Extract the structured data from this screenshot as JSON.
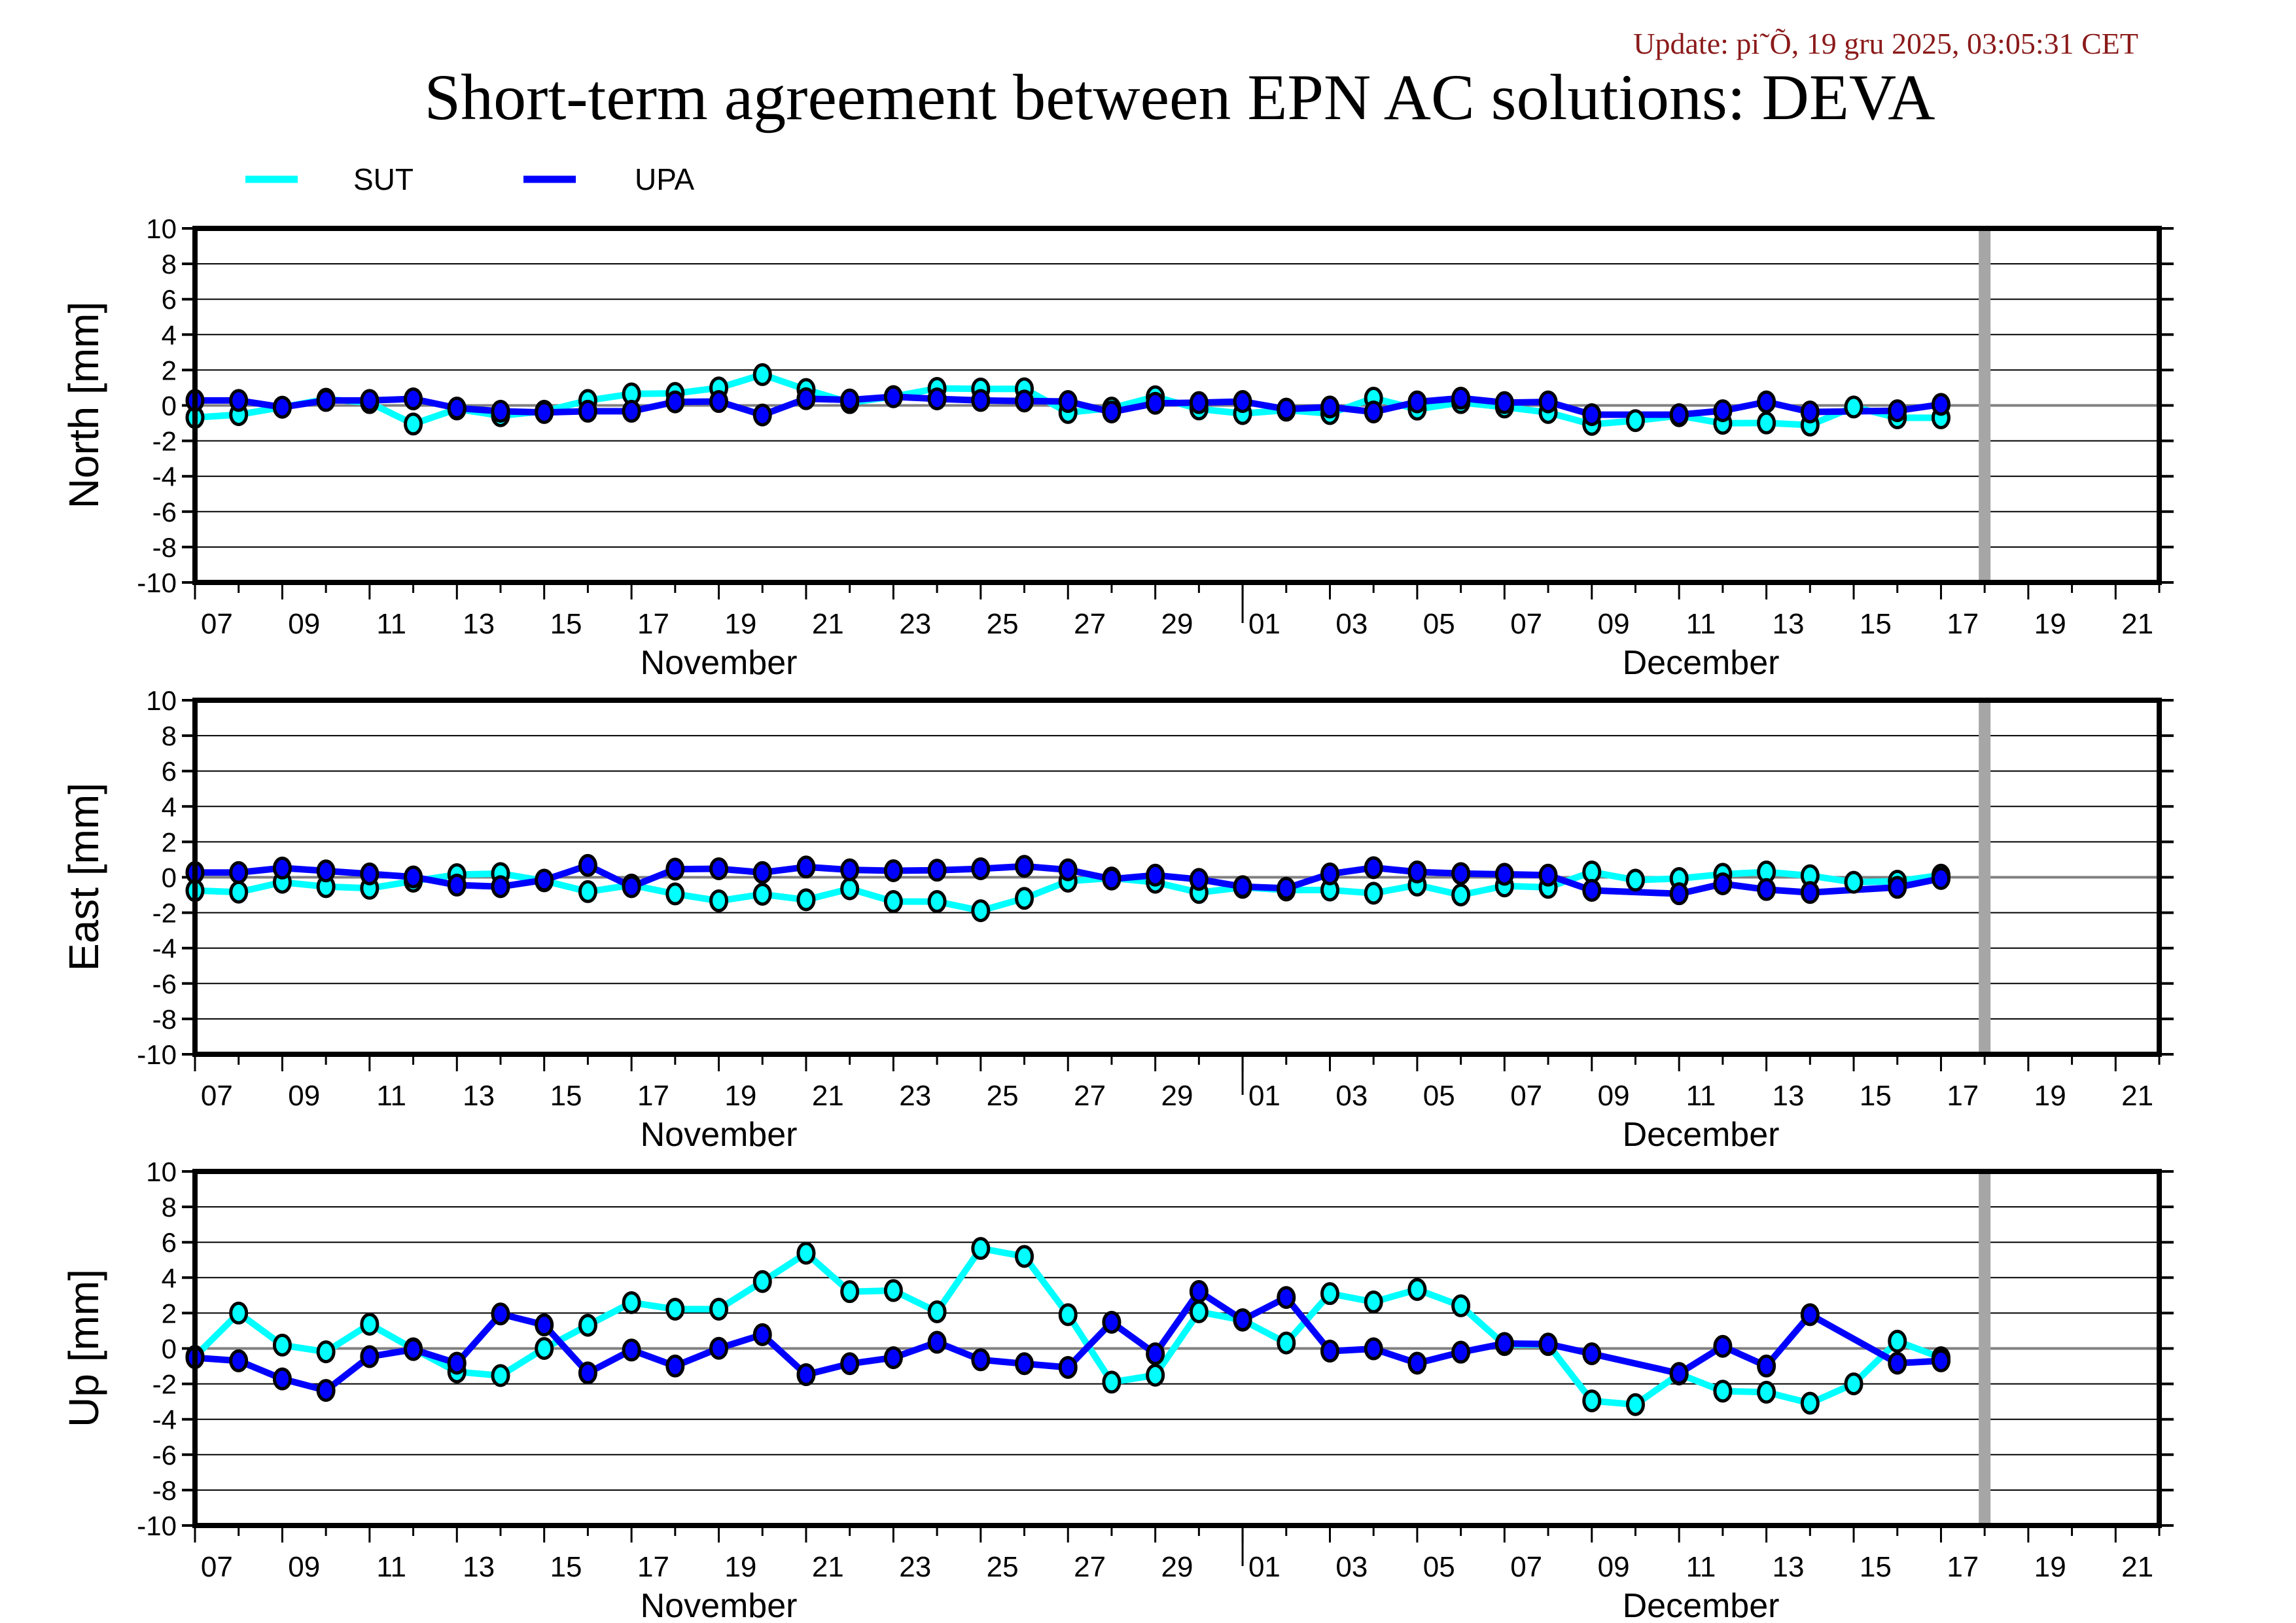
{
  "update_text": "Update: pi˜Õ, 19 gru 2025, 03:05:31 CET",
  "colors": {
    "update_text": "#8b1a1a",
    "frame": "#000000",
    "grid": "#000000",
    "zero_line": "#808080",
    "gray_bar": "#a6a6a6"
  },
  "chart_data": {
    "type": "line",
    "title": "Short-term agreement between EPN AC solutions: DEVA",
    "legend": {
      "placement": "top-left",
      "entries": [
        {
          "name": "SUT",
          "color": "#00ffff"
        },
        {
          "name": "UPA",
          "color": "#0000ff"
        }
      ]
    },
    "x_axis": {
      "start": "2025-11-07",
      "end": "2025-12-22",
      "tick_labels": [
        "07",
        "09",
        "11",
        "13",
        "15",
        "17",
        "19",
        "21",
        "23",
        "25",
        "27",
        "29",
        "01",
        "03",
        "05",
        "07",
        "09",
        "11",
        "13",
        "15",
        "17",
        "19",
        "21"
      ],
      "month_labels": [
        {
          "label": "November",
          "from": "2025-11-07",
          "to": "2025-12-01"
        },
        {
          "label": "December",
          "from": "2025-12-01",
          "to": "2025-12-22"
        }
      ],
      "month_divider": "2025-12-01",
      "marker_line": "2025-12-18"
    },
    "x": [
      "2025-11-07",
      "2025-11-08",
      "2025-11-09",
      "2025-11-10",
      "2025-11-11",
      "2025-11-12",
      "2025-11-13",
      "2025-11-14",
      "2025-11-15",
      "2025-11-16",
      "2025-11-17",
      "2025-11-18",
      "2025-11-19",
      "2025-11-20",
      "2025-11-21",
      "2025-11-22",
      "2025-11-23",
      "2025-11-24",
      "2025-11-25",
      "2025-11-26",
      "2025-11-27",
      "2025-11-28",
      "2025-11-29",
      "2025-11-30",
      "2025-12-01",
      "2025-12-02",
      "2025-12-03",
      "2025-12-04",
      "2025-12-05",
      "2025-12-06",
      "2025-12-07",
      "2025-12-08",
      "2025-12-09",
      "2025-12-10",
      "2025-12-11",
      "2025-12-12",
      "2025-12-13",
      "2025-12-14",
      "2025-12-15",
      "2025-12-16",
      "2025-12-17"
    ],
    "panels": [
      {
        "name": "north",
        "ylabel": "North [mm]",
        "ylim": [
          -10,
          10
        ],
        "yticks": [
          10,
          8,
          6,
          4,
          2,
          0,
          -2,
          -4,
          -6,
          -8,
          -10
        ],
        "grid": true,
        "series": [
          {
            "name": "SUT",
            "values": [
              -0.68,
              -0.52,
              -0.1,
              0.35,
              0.16,
              -1.05,
              -0.2,
              -0.58,
              -0.33,
              0.28,
              0.65,
              0.68,
              0.99,
              1.74,
              0.9,
              0.16,
              0.5,
              0.96,
              0.93,
              0.94,
              -0.4,
              -0.15,
              0.49,
              -0.2,
              -0.46,
              -0.27,
              -0.46,
              0.41,
              -0.21,
              0.16,
              -0.09,
              -0.4,
              -1.07,
              -0.86,
              -0.58,
              -1.01,
              -0.99,
              -1.11,
              -0.09,
              -0.7,
              -0.7
            ]
          },
          {
            "name": "UPA",
            "values": [
              0.28,
              0.28,
              -0.1,
              0.28,
              0.28,
              0.37,
              -0.15,
              -0.33,
              -0.4,
              -0.33,
              -0.33,
              0.2,
              0.22,
              -0.54,
              0.38,
              0.31,
              0.49,
              0.37,
              0.28,
              0.25,
              0.22,
              -0.37,
              0.12,
              0.16,
              0.22,
              -0.21,
              -0.09,
              -0.37,
              0.2,
              0.41,
              0.16,
              0.2,
              -0.52,
              null,
              -0.52,
              -0.3,
              0.2,
              -0.37,
              null,
              -0.3,
              0.06
            ]
          }
        ]
      },
      {
        "name": "east",
        "ylabel": "East [mm]",
        "ylim": [
          -10,
          10
        ],
        "yticks": [
          10,
          8,
          6,
          4,
          2,
          0,
          -2,
          -4,
          -6,
          -8,
          -10
        ],
        "grid": true,
        "series": [
          {
            "name": "SUT",
            "values": [
              -0.75,
              -0.84,
              -0.28,
              -0.53,
              -0.62,
              -0.22,
              0.15,
              0.21,
              -0.2,
              -0.81,
              -0.44,
              -0.94,
              -1.33,
              -0.96,
              -1.27,
              -0.65,
              -1.37,
              -1.37,
              -1.89,
              -1.19,
              -0.22,
              -0.04,
              -0.28,
              -0.86,
              -0.57,
              -0.72,
              -0.72,
              -0.9,
              -0.44,
              -1.0,
              -0.49,
              -0.57,
              0.3,
              -0.16,
              -0.07,
              0.17,
              0.3,
              0.09,
              -0.28,
              -0.22,
              0.12
            ]
          },
          {
            "name": "UPA",
            "values": [
              0.27,
              0.27,
              0.52,
              0.36,
              0.19,
              0.02,
              -0.44,
              -0.53,
              -0.16,
              0.67,
              -0.53,
              0.46,
              0.48,
              0.27,
              0.58,
              0.42,
              0.37,
              0.4,
              0.48,
              0.62,
              0.42,
              -0.1,
              0.12,
              -0.12,
              -0.53,
              -0.62,
              0.19,
              0.54,
              0.3,
              0.21,
              0.17,
              0.12,
              -0.74,
              null,
              -0.93,
              -0.37,
              -0.69,
              -0.86,
              null,
              -0.57,
              -0.07
            ]
          }
        ]
      },
      {
        "name": "up",
        "ylabel": "Up [mm]",
        "ylim": [
          -10,
          10
        ],
        "yticks": [
          10,
          8,
          6,
          4,
          2,
          0,
          -2,
          -4,
          -6,
          -8,
          -10
        ],
        "grid": true,
        "series": [
          {
            "name": "SUT",
            "values": [
              -0.45,
              2.0,
              0.19,
              -0.19,
              1.37,
              -0.02,
              -1.32,
              -1.53,
              0.0,
              1.31,
              2.59,
              2.22,
              2.22,
              3.78,
              5.38,
              3.21,
              3.27,
              2.07,
              5.65,
              5.2,
              1.91,
              -1.9,
              -1.51,
              2.07,
              1.6,
              0.31,
              3.1,
              2.63,
              3.33,
              2.41,
              0.22,
              0.22,
              -2.96,
              -3.17,
              -1.44,
              -2.41,
              -2.47,
              -3.09,
              -2.0,
              0.41,
              -0.52
            ]
          },
          {
            "name": "UPA",
            "values": [
              -0.52,
              -0.7,
              -1.72,
              -2.37,
              -0.46,
              -0.06,
              -0.83,
              1.95,
              1.33,
              -1.38,
              -0.09,
              -0.99,
              0.01,
              0.78,
              -1.48,
              -0.86,
              -0.52,
              0.35,
              -0.64,
              -0.86,
              -1.07,
              1.48,
              -0.3,
              3.22,
              1.62,
              2.88,
              -0.15,
              -0.02,
              -0.83,
              -0.21,
              0.28,
              0.25,
              -0.3,
              null,
              -1.41,
              0.12,
              -0.99,
              1.91,
              null,
              -0.83,
              -0.7
            ]
          }
        ]
      }
    ]
  }
}
